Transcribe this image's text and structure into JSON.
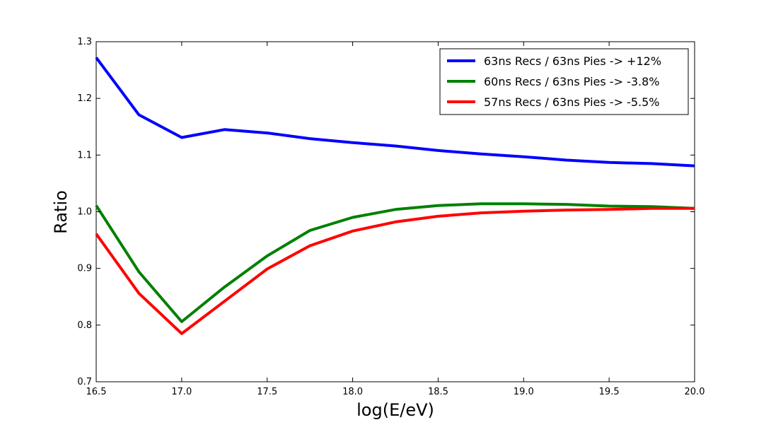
{
  "chart_data": {
    "type": "line",
    "xlabel": "log(E/eV)",
    "ylabel": "Ratio",
    "xlim": [
      16.5,
      20.0
    ],
    "ylim": [
      0.7,
      1.3
    ],
    "x_ticks": [
      "16.5",
      "17.0",
      "17.5",
      "18.0",
      "18.5",
      "19.0",
      "19.5",
      "20.0"
    ],
    "y_ticks": [
      "0.7",
      "0.8",
      "0.9",
      "1.0",
      "1.1",
      "1.2",
      "1.3"
    ],
    "grid": false,
    "legend_position": "top-right",
    "x": [
      16.5,
      16.75,
      17.0,
      17.25,
      17.5,
      17.75,
      18.0,
      18.25,
      18.5,
      18.75,
      19.0,
      19.25,
      19.5,
      19.75,
      20.0
    ],
    "series": [
      {
        "name": "63ns Recs / 63ns Pies -> +12%",
        "color": "#0000ff",
        "values": [
          1.272,
          1.171,
          1.131,
          1.145,
          1.139,
          1.129,
          1.122,
          1.116,
          1.108,
          1.102,
          1.097,
          1.091,
          1.087,
          1.085,
          1.081
        ]
      },
      {
        "name": "60ns Recs / 63ns Pies -> -3.8%",
        "color": "#008000",
        "values": [
          1.011,
          0.894,
          0.806,
          0.867,
          0.922,
          0.967,
          0.99,
          1.004,
          1.011,
          1.014,
          1.014,
          1.013,
          1.01,
          1.009,
          1.006
        ]
      },
      {
        "name": "57ns Recs / 63ns Pies -> -5.5%",
        "color": "#ff0000",
        "values": [
          0.961,
          0.856,
          0.785,
          0.842,
          0.899,
          0.94,
          0.966,
          0.982,
          0.992,
          0.998,
          1.001,
          1.003,
          1.004,
          1.006,
          1.006
        ]
      }
    ]
  }
}
